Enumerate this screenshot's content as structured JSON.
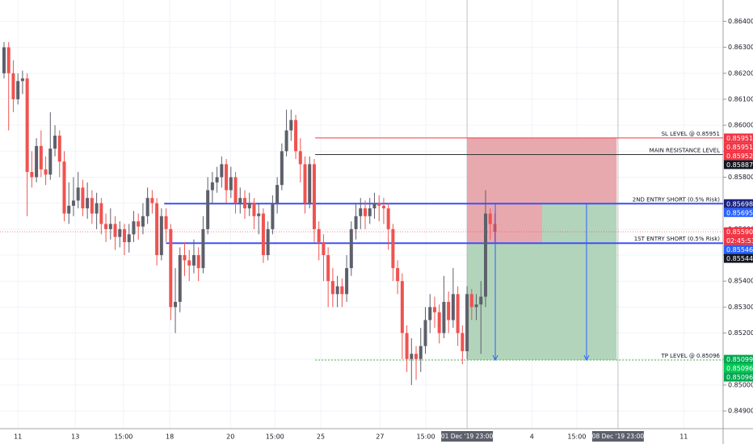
{
  "chart_data": {
    "type": "candlestick",
    "colors": {
      "up": "#5d606b",
      "down": "#ef5350"
    },
    "open": [
      0.862,
      0.863,
      0.862,
      0.861,
      0.8617,
      0.8618,
      0.8582,
      0.858,
      0.8592,
      0.8583,
      0.8581,
      0.8591,
      0.8596,
      0.8586,
      0.8566,
      0.8569,
      0.8571,
      0.8576,
      0.8568,
      0.8572,
      0.8566,
      0.857,
      0.8562,
      0.856,
      0.8562,
      0.8557,
      0.856,
      0.8555,
      0.8558,
      0.8563,
      0.8561,
      0.8565,
      0.8572,
      0.857,
      0.855,
      0.8565,
      0.856,
      0.853,
      0.8532,
      0.855,
      0.8548,
      0.8546,
      0.855,
      0.8545,
      0.856,
      0.8575,
      0.8578,
      0.858,
      0.8585,
      0.8575,
      0.858,
      0.857,
      0.8572,
      0.8568,
      0.857,
      0.8565,
      0.8566,
      0.855,
      0.856,
      0.857,
      0.8577,
      0.859,
      0.8598,
      0.8602,
      0.859,
      0.8585,
      0.857,
      0.8585,
      0.856,
      0.8555,
      0.855,
      0.854,
      0.8535,
      0.8538,
      0.8535,
      0.8545,
      0.856,
      0.8565,
      0.8568,
      0.8565,
      0.8568,
      0.857,
      0.8569,
      0.8568,
      0.856,
      0.8545,
      0.854,
      0.852,
      0.851,
      0.8512,
      0.851,
      0.8515,
      0.8525,
      0.853,
      0.8528,
      0.852,
      0.8532,
      0.8525,
      0.8535,
      0.852,
      0.8513,
      0.8535,
      0.853,
      0.8531,
      0.8534,
      0.8566,
      0.8562
    ],
    "high": [
      0.8632,
      0.8632,
      0.8625,
      0.862,
      0.8621,
      0.862,
      0.859,
      0.8595,
      0.8598,
      0.8588,
      0.8605,
      0.86,
      0.8598,
      0.859,
      0.8578,
      0.858,
      0.8582,
      0.8579,
      0.8578,
      0.8575,
      0.8574,
      0.8572,
      0.8566,
      0.8568,
      0.8565,
      0.8563,
      0.8562,
      0.8562,
      0.8567,
      0.8566,
      0.857,
      0.8576,
      0.8575,
      0.8572,
      0.8568,
      0.8568,
      0.8562,
      0.8545,
      0.8553,
      0.8555,
      0.8552,
      0.8556,
      0.8553,
      0.8565,
      0.858,
      0.8582,
      0.8584,
      0.8588,
      0.8587,
      0.8584,
      0.8582,
      0.8576,
      0.8575,
      0.8574,
      0.8572,
      0.857,
      0.8568,
      0.8563,
      0.8573,
      0.858,
      0.8593,
      0.8606,
      0.8606,
      0.8604,
      0.8595,
      0.8588,
      0.8588,
      0.8587,
      0.8563,
      0.8558,
      0.8553,
      0.8545,
      0.8542,
      0.8541,
      0.855,
      0.8563,
      0.857,
      0.8572,
      0.8571,
      0.8572,
      0.8574,
      0.8573,
      0.8572,
      0.857,
      0.8562,
      0.8548,
      0.8543,
      0.8523,
      0.8518,
      0.8515,
      0.8522,
      0.853,
      0.8535,
      0.8534,
      0.8531,
      0.8542,
      0.8536,
      0.8545,
      0.8538,
      0.8523,
      0.8538,
      0.8537,
      0.8535,
      0.854,
      0.8575,
      0.8568,
      0.8566
    ],
    "low": [
      0.8618,
      0.8598,
      0.8605,
      0.8608,
      0.8612,
      0.8565,
      0.8576,
      0.8578,
      0.858,
      0.8577,
      0.8579,
      0.8588,
      0.858,
      0.8563,
      0.8562,
      0.8565,
      0.8568,
      0.8565,
      0.8564,
      0.8562,
      0.856,
      0.8558,
      0.8555,
      0.8556,
      0.8552,
      0.8553,
      0.855,
      0.8551,
      0.8555,
      0.8556,
      0.8558,
      0.8562,
      0.8566,
      0.8546,
      0.8548,
      0.8555,
      0.8525,
      0.852,
      0.8528,
      0.8542,
      0.854,
      0.8543,
      0.854,
      0.8543,
      0.8558,
      0.857,
      0.8574,
      0.8576,
      0.857,
      0.8572,
      0.8566,
      0.8566,
      0.8564,
      0.8565,
      0.856,
      0.8558,
      0.8547,
      0.8548,
      0.8558,
      0.8566,
      0.8575,
      0.8588,
      0.8594,
      0.8587,
      0.8578,
      0.8566,
      0.8568,
      0.8555,
      0.8548,
      0.854,
      0.853,
      0.853,
      0.853,
      0.853,
      0.8532,
      0.8542,
      0.8556,
      0.856,
      0.856,
      0.8562,
      0.8564,
      0.8563,
      0.8562,
      0.8552,
      0.854,
      0.8535,
      0.851,
      0.8505,
      0.85,
      0.8502,
      0.8505,
      0.8512,
      0.852,
      0.8522,
      0.8516,
      0.8518,
      0.852,
      0.8522,
      0.8515,
      0.8508,
      0.851,
      0.8525,
      0.8525,
      0.8512,
      0.853,
      0.8556,
      0.8555
    ],
    "close": [
      0.863,
      0.862,
      0.861,
      0.8617,
      0.8618,
      0.8582,
      0.858,
      0.8592,
      0.8583,
      0.8581,
      0.8591,
      0.8596,
      0.8586,
      0.8566,
      0.8569,
      0.8571,
      0.8576,
      0.8568,
      0.8572,
      0.8566,
      0.857,
      0.8562,
      0.856,
      0.8562,
      0.8557,
      0.856,
      0.8555,
      0.8558,
      0.8563,
      0.8561,
      0.8565,
      0.8572,
      0.857,
      0.855,
      0.8565,
      0.856,
      0.853,
      0.8532,
      0.855,
      0.8548,
      0.8546,
      0.855,
      0.8545,
      0.856,
      0.8575,
      0.8578,
      0.858,
      0.8585,
      0.8575,
      0.858,
      0.857,
      0.8572,
      0.8568,
      0.857,
      0.8565,
      0.8566,
      0.855,
      0.856,
      0.857,
      0.8577,
      0.859,
      0.8598,
      0.8602,
      0.859,
      0.8585,
      0.857,
      0.8585,
      0.856,
      0.8555,
      0.855,
      0.854,
      0.8535,
      0.8538,
      0.8535,
      0.8545,
      0.856,
      0.8565,
      0.8568,
      0.8565,
      0.8568,
      0.857,
      0.8569,
      0.8568,
      0.856,
      0.8545,
      0.854,
      0.852,
      0.851,
      0.8512,
      0.851,
      0.8515,
      0.8525,
      0.853,
      0.8528,
      0.852,
      0.8532,
      0.8525,
      0.8535,
      0.852,
      0.8513,
      0.8535,
      0.853,
      0.8531,
      0.8534,
      0.8566,
      0.8562,
      0.8559
    ],
    "xlim": [
      -0.87,
      155.3
    ],
    "ylim": [
      0.84832,
      0.86482
    ],
    "xticks": [
      {
        "value": 3,
        "label": "11"
      },
      {
        "value": 15.4,
        "label": "13"
      },
      {
        "value": 25.8,
        "label": "15:00"
      },
      {
        "value": 35.8,
        "label": "18"
      },
      {
        "value": 48.9,
        "label": "20"
      },
      {
        "value": 58.5,
        "label": "15:00"
      },
      {
        "value": 68.4,
        "label": "25"
      },
      {
        "value": 81.2,
        "label": "27"
      },
      {
        "value": 91.1,
        "label": "15:00"
      },
      {
        "value": 114,
        "label": "4"
      },
      {
        "value": 123.7,
        "label": "15:00"
      },
      {
        "value": 146.8,
        "label": "11"
      }
    ],
    "yticks": [
      {
        "value": 0.864,
        "label": "0.86400"
      },
      {
        "value": 0.863,
        "label": "0.86300"
      },
      {
        "value": 0.862,
        "label": "0.86200"
      },
      {
        "value": 0.861,
        "label": "0.86100"
      },
      {
        "value": 0.86,
        "label": "0.86000"
      },
      {
        "value": 0.859,
        "label": "0.85900"
      },
      {
        "value": 0.858,
        "label": "0.85800"
      },
      {
        "value": 0.857,
        "label": "0.85700"
      },
      {
        "value": 0.856,
        "label": "0.85600"
      },
      {
        "value": 0.855,
        "label": "0.85500"
      },
      {
        "value": 0.854,
        "label": "0.85400"
      },
      {
        "value": 0.853,
        "label": "0.85300"
      },
      {
        "value": 0.852,
        "label": "0.85200"
      },
      {
        "value": 0.851,
        "label": "0.85100"
      },
      {
        "value": 0.85,
        "label": "0.85000"
      },
      {
        "value": 0.849,
        "label": "0.84900"
      }
    ],
    "grid": true,
    "xmarkers": [
      {
        "value": 100,
        "label": "01 Dec '19   23:00"
      },
      {
        "value": 132.6,
        "label": "08 Dec '19   23:00"
      }
    ],
    "levels": [
      {
        "label": "SL LEVEL @ 0.85951",
        "value": 0.85951,
        "start": 67.2,
        "color": "#f23645",
        "width": 1
      },
      {
        "label": "MAIN RESISTANCE LEVEL",
        "value": 0.85887,
        "start": 67.2,
        "color": "#333333",
        "width": 1
      },
      {
        "label": "2ND ENTRY SHORT (0.5% Risk)",
        "value": 0.85698,
        "start": 34.6,
        "color": "#3f51f5",
        "width": 2
      },
      {
        "label": "1ST ENTRY SHORT (0.5% Risk)",
        "value": 0.85546,
        "start": 35,
        "color": "#3f51f5",
        "width": 2
      },
      {
        "label": "TP LEVEL @ 0.85096",
        "value": 0.85096,
        "start": 67.2,
        "color": "#4caf50",
        "width": 1,
        "dash": true
      }
    ],
    "positions": [
      {
        "start": 100,
        "end": 132.3,
        "entry": 0.85546,
        "stop": 0.85951,
        "target": 0.85096
      },
      {
        "start": 116.2,
        "end": 132.3,
        "entry": 0.85698,
        "stop": 0.85951,
        "target": 0.85096
      }
    ],
    "arrows": [
      {
        "x": 106.1,
        "from": 0.85698,
        "to": 0.85096
      },
      {
        "x": 125.8,
        "from": 0.85698,
        "to": 0.85096
      }
    ],
    "price_tags": [
      {
        "value": 0.85951,
        "label": "0.85951",
        "color": "#f23645"
      },
      {
        "value": 0.85951,
        "label": "0.85951",
        "color": "#f23645"
      },
      {
        "value": 0.85952,
        "label": "0.85952",
        "color": "#f23645"
      },
      {
        "value": 0.85887,
        "label": "0.85887",
        "color": "#131722"
      },
      {
        "value": 0.85698,
        "label": "0.85698",
        "color": "#1a237e"
      },
      {
        "value": 0.85695,
        "label": "0.85695",
        "color": "#2962ff"
      },
      {
        "value": 0.8559,
        "label": "0.85590",
        "color": "#f23645",
        "countdown": "02:45:53",
        "current": true
      },
      {
        "value": 0.85546,
        "label": "0.85546",
        "color": "#2962ff"
      },
      {
        "value": 0.85544,
        "label": "0.85544",
        "color": "#131722"
      },
      {
        "value": 0.85099,
        "label": "0.85099",
        "color": "#00a650"
      },
      {
        "value": 0.85096,
        "label": "0.85096",
        "color": "#00c853"
      },
      {
        "value": 0.85096,
        "label": "0.85096",
        "color": "#00a650"
      }
    ]
  }
}
